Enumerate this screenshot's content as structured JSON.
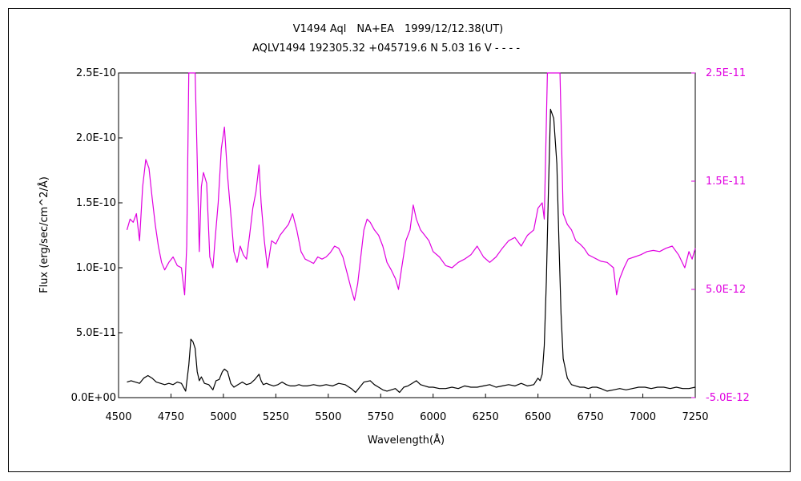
{
  "chart_data": {
    "type": "line",
    "title": "V1494 Aql　NA+EA　1999/12/12.38(UT)",
    "subtitle": "AQLV1494 192305.32 +045719.6 N 5.03 16 V - - - -",
    "xlabel": "Wavelength(Å)",
    "ylabel": "Flux (erg/sec/cm^2/Å)",
    "xlim": [
      4500,
      7250
    ],
    "ylim": [
      0,
      2.5e-10
    ],
    "y2lim": [
      -5e-12,
      2.5e-11
    ],
    "grid": false,
    "x_ticks": [
      "4500",
      "4750",
      "5000",
      "5250",
      "5500",
      "5750",
      "6000",
      "6250",
      "6500",
      "6750",
      "7000",
      "7250"
    ],
    "y_ticks": [
      "0.0E+00",
      "5.0E-11",
      "1.0E-10",
      "1.5E-10",
      "2.0E-10",
      "2.5E-10"
    ],
    "y2_ticks": [
      "-5.0E-12",
      "5.0E-12",
      "1.5E-11",
      "2.5E-11"
    ],
    "colors": {
      "primary": "#000000",
      "secondary": "#e000e0"
    },
    "series": [
      {
        "axis": "left",
        "color": "#000000",
        "x": [
          4540,
          4560,
          4580,
          4600,
          4620,
          4640,
          4660,
          4680,
          4700,
          4720,
          4740,
          4760,
          4780,
          4800,
          4820,
          4835,
          4845,
          4855,
          4865,
          4875,
          4885,
          4895,
          4910,
          4930,
          4950,
          4965,
          4980,
          4995,
          5005,
          5020,
          5035,
          5050,
          5070,
          5090,
          5110,
          5130,
          5150,
          5170,
          5180,
          5190,
          5205,
          5220,
          5240,
          5260,
          5280,
          5300,
          5320,
          5340,
          5360,
          5380,
          5400,
          5430,
          5460,
          5490,
          5520,
          5550,
          5580,
          5610,
          5630,
          5650,
          5670,
          5700,
          5720,
          5740,
          5760,
          5780,
          5800,
          5820,
          5840,
          5860,
          5880,
          5900,
          5920,
          5940,
          5960,
          5980,
          6000,
          6030,
          6060,
          6090,
          6120,
          6150,
          6180,
          6210,
          6240,
          6270,
          6300,
          6330,
          6360,
          6390,
          6420,
          6450,
          6480,
          6500,
          6510,
          6520,
          6530,
          6540,
          6550,
          6560,
          6575,
          6590,
          6600,
          6610,
          6620,
          6640,
          6660,
          6680,
          6700,
          6720,
          6740,
          6760,
          6780,
          6800,
          6830,
          6860,
          6890,
          6920,
          6950,
          6980,
          7010,
          7040,
          7070,
          7100,
          7130,
          7160,
          7190,
          7220,
          7250
        ],
        "y": [
          1.2e-11,
          1.3e-11,
          1.2e-11,
          1.1e-11,
          1.5e-11,
          1.7e-11,
          1.5e-11,
          1.2e-11,
          1.1e-11,
          1e-11,
          1.1e-11,
          1e-11,
          1.2e-11,
          1.1e-11,
          5e-12,
          2.5e-11,
          4.5e-11,
          4.3e-11,
          3.8e-11,
          2e-11,
          1.3e-11,
          1.6e-11,
          1.1e-11,
          1e-11,
          6e-12,
          1.3e-11,
          1.4e-11,
          2e-11,
          2.2e-11,
          2e-11,
          1.1e-11,
          8e-12,
          1e-11,
          1.2e-11,
          1e-11,
          1.1e-11,
          1.4e-11,
          1.8e-11,
          1.3e-11,
          1e-11,
          1.1e-11,
          1e-11,
          9e-12,
          1e-11,
          1.2e-11,
          1e-11,
          9e-12,
          9e-12,
          1e-11,
          9e-12,
          9e-12,
          1e-11,
          9e-12,
          1e-11,
          9e-12,
          1.1e-11,
          1e-11,
          7e-12,
          4e-12,
          8e-12,
          1.2e-11,
          1.3e-11,
          1e-11,
          8e-12,
          6e-12,
          5e-12,
          6e-12,
          7e-12,
          4e-12,
          8e-12,
          9e-12,
          1.1e-11,
          1.3e-11,
          1e-11,
          9e-12,
          8e-12,
          8e-12,
          7e-12,
          7e-12,
          8e-12,
          7e-12,
          9e-12,
          8e-12,
          8e-12,
          9e-12,
          1e-11,
          8e-12,
          9e-12,
          1e-11,
          9e-12,
          1.1e-11,
          9e-12,
          1e-11,
          1.5e-11,
          1.3e-11,
          1.8e-11,
          4e-11,
          9e-11,
          1.6e-10,
          2.22e-10,
          2.15e-10,
          1.8e-10,
          1.2e-10,
          6.5e-11,
          3e-11,
          1.5e-11,
          1e-11,
          9e-12,
          8e-12,
          8e-12,
          7e-12,
          8e-12,
          8e-12,
          7e-12,
          5e-12,
          6e-12,
          7e-12,
          6e-12,
          7e-12,
          8e-12,
          8e-12,
          7e-12,
          8e-12,
          8e-12,
          7e-12,
          8e-12,
          7e-12,
          7e-12,
          8e-12
        ]
      },
      {
        "axis": "right",
        "color": "#e000e0",
        "x": [
          4540,
          4555,
          4570,
          4585,
          4600,
          4615,
          4630,
          4645,
          4660,
          4675,
          4690,
          4705,
          4720,
          4740,
          4760,
          4780,
          4800,
          4815,
          4825,
          4835,
          4845,
          4855,
          4865,
          4875,
          4885,
          4895,
          4905,
          4920,
          4935,
          4950,
          4960,
          4975,
          4990,
          5005,
          5020,
          5035,
          5050,
          5065,
          5080,
          5095,
          5110,
          5125,
          5140,
          5155,
          5170,
          5180,
          5195,
          5210,
          5230,
          5250,
          5270,
          5290,
          5310,
          5330,
          5350,
          5370,
          5390,
          5410,
          5430,
          5450,
          5470,
          5490,
          5510,
          5530,
          5550,
          5570,
          5590,
          5610,
          5625,
          5640,
          5655,
          5670,
          5685,
          5700,
          5720,
          5740,
          5760,
          5780,
          5800,
          5820,
          5835,
          5850,
          5870,
          5890,
          5905,
          5920,
          5940,
          5960,
          5980,
          6000,
          6030,
          6060,
          6090,
          6120,
          6150,
          6180,
          6210,
          6240,
          6270,
          6300,
          6330,
          6360,
          6390,
          6420,
          6450,
          6480,
          6500,
          6520,
          6530,
          6545,
          6560,
          6575,
          6590,
          6605,
          6620,
          6640,
          6660,
          6680,
          6700,
          6720,
          6740,
          6760,
          6780,
          6800,
          6830,
          6860,
          6875,
          6890,
          6910,
          6930,
          6960,
          6990,
          7020,
          7050,
          7080,
          7110,
          7140,
          7170,
          7200,
          7220,
          7235,
          7250
        ],
        "y": [
          1.05e-11,
          1.15e-11,
          1.12e-11,
          1.2e-11,
          9.5e-12,
          1.45e-11,
          1.7e-11,
          1.62e-11,
          1.35e-11,
          1.1e-11,
          9e-12,
          7.5e-12,
          6.8e-12,
          7.5e-12,
          8e-12,
          7.2e-12,
          7e-12,
          4.5e-12,
          9e-12,
          2.5e-11,
          2.5e-11,
          2.5e-11,
          2.5e-11,
          1.7e-11,
          8.5e-12,
          1.45e-11,
          1.58e-11,
          1.48e-11,
          8e-12,
          7e-12,
          9.5e-12,
          1.3e-11,
          1.8e-11,
          2e-11,
          1.55e-11,
          1.2e-11,
          8.5e-12,
          7.5e-12,
          9e-12,
          8.2e-12,
          7.8e-12,
          1e-11,
          1.25e-11,
          1.4e-11,
          1.65e-11,
          1.3e-11,
          9.5e-12,
          7e-12,
          9.5e-12,
          9.2e-12,
          1e-11,
          1.05e-11,
          1.1e-11,
          1.2e-11,
          1.05e-11,
          8.5e-12,
          7.8e-12,
          7.6e-12,
          7.4e-12,
          8e-12,
          7.8e-12,
          8e-12,
          8.4e-12,
          9e-12,
          8.8e-12,
          8e-12,
          6.5e-12,
          5e-12,
          4e-12,
          5.5e-12,
          8e-12,
          1.05e-11,
          1.15e-11,
          1.12e-11,
          1.05e-11,
          1e-11,
          9e-12,
          7.5e-12,
          6.8e-12,
          6e-12,
          5e-12,
          7e-12,
          9.5e-12,
          1.05e-11,
          1.28e-11,
          1.15e-11,
          1.05e-11,
          1e-11,
          9.5e-12,
          8.5e-12,
          8e-12,
          7.2e-12,
          7e-12,
          7.5e-12,
          7.8e-12,
          8.2e-12,
          9e-12,
          8e-12,
          7.5e-12,
          8e-12,
          8.8e-12,
          9.5e-12,
          9.8e-12,
          9e-12,
          1e-11,
          1.05e-11,
          1.25e-11,
          1.3e-11,
          1.15e-11,
          2.5e-11,
          2.5e-11,
          2.5e-11,
          2.5e-11,
          2.5e-11,
          1.2e-11,
          1.1e-11,
          1.05e-11,
          9.5e-12,
          9.2e-12,
          8.8e-12,
          8.2e-12,
          8e-12,
          7.8e-12,
          7.6e-12,
          7.5e-12,
          7e-12,
          4.5e-12,
          6e-12,
          7e-12,
          7.8e-12,
          8e-12,
          8.2e-12,
          8.5e-12,
          8.6e-12,
          8.5e-12,
          8.8e-12,
          9e-12,
          8.2e-12,
          7e-12,
          8.5e-12,
          7.8e-12,
          8.8e-12
        ]
      }
    ]
  }
}
